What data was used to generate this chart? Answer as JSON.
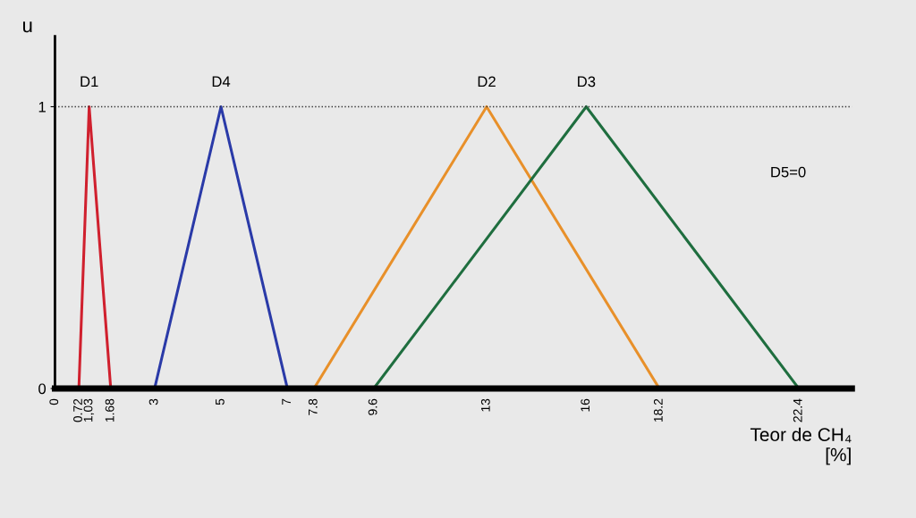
{
  "chart_data": {
    "type": "line",
    "xlabel": "Teor de CH₄\n[%]",
    "ylabel": "u",
    "series": [
      {
        "name": "D1",
        "color": "#d0202e",
        "x": [
          0.72,
          1.03,
          1.68
        ],
        "values": [
          0,
          1,
          0
        ]
      },
      {
        "name": "D4",
        "color": "#2a3aa8",
        "x": [
          3,
          5,
          7
        ],
        "values": [
          0,
          1,
          0
        ]
      },
      {
        "name": "D2",
        "color": "#e8902a",
        "x": [
          7.8,
          13,
          18.2
        ],
        "values": [
          0,
          1,
          0
        ]
      },
      {
        "name": "D3",
        "color": "#1f6e3f",
        "x": [
          9.6,
          16,
          22.4
        ],
        "values": [
          0,
          1,
          0
        ]
      }
    ],
    "xlim": [
      0,
      24
    ],
    "ylim": [
      0,
      1.25
    ],
    "xticks": [
      0,
      0.72,
      {
        "value": 1.03,
        "label": "1,03"
      },
      1.68,
      3,
      5,
      7,
      7.8,
      9.6,
      13,
      16,
      18.2,
      22.4
    ],
    "yticks": [
      0,
      1
    ],
    "ref_lines": [
      {
        "axis": "y",
        "value": 1,
        "label": null,
        "line_style": "dotted"
      }
    ],
    "annotations": [
      "D5=0"
    ],
    "grid": false,
    "legend": false,
    "marker": "none",
    "line_style": "solid"
  }
}
